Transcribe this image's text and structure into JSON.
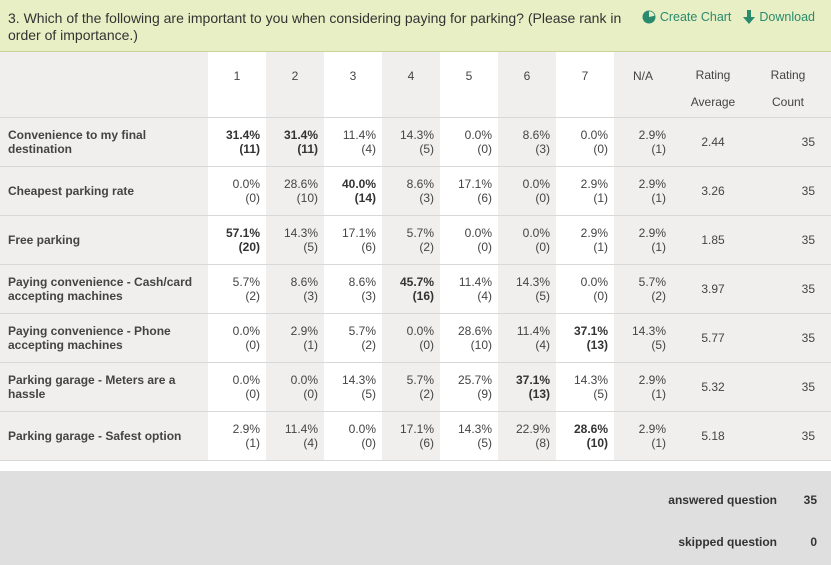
{
  "question": "3. Which of the following are important to you when considering paying for parking? (Please rank in order of importance.)",
  "actions": {
    "create_chart": "Create Chart",
    "download": "Download"
  },
  "colors": {
    "header_bg": "#e8efc4",
    "accent": "#2a8a6e",
    "footer_bg": "#dfdfdf"
  },
  "columns": [
    "1",
    "2",
    "3",
    "4",
    "5",
    "6",
    "7",
    "N/A",
    "Rating Average",
    "Rating Count"
  ],
  "rows": [
    {
      "label": "Convenience to my final destination",
      "cells": [
        [
          "31.4%",
          "(11)",
          true
        ],
        [
          "31.4%",
          "(11)",
          true
        ],
        [
          "11.4%",
          "(4)",
          false
        ],
        [
          "14.3%",
          "(5)",
          false
        ],
        [
          "0.0%",
          "(0)",
          false
        ],
        [
          "8.6%",
          "(3)",
          false
        ],
        [
          "0.0%",
          "(0)",
          false
        ],
        [
          "2.9%",
          "(1)",
          false
        ]
      ],
      "avg": "2.44",
      "count": "35"
    },
    {
      "label": "Cheapest parking rate",
      "cells": [
        [
          "0.0%",
          "(0)",
          false
        ],
        [
          "28.6%",
          "(10)",
          false
        ],
        [
          "40.0%",
          "(14)",
          true
        ],
        [
          "8.6%",
          "(3)",
          false
        ],
        [
          "17.1%",
          "(6)",
          false
        ],
        [
          "0.0%",
          "(0)",
          false
        ],
        [
          "2.9%",
          "(1)",
          false
        ],
        [
          "2.9%",
          "(1)",
          false
        ]
      ],
      "avg": "3.26",
      "count": "35"
    },
    {
      "label": "Free parking",
      "cells": [
        [
          "57.1%",
          "(20)",
          true
        ],
        [
          "14.3%",
          "(5)",
          false
        ],
        [
          "17.1%",
          "(6)",
          false
        ],
        [
          "5.7%",
          "(2)",
          false
        ],
        [
          "0.0%",
          "(0)",
          false
        ],
        [
          "0.0%",
          "(0)",
          false
        ],
        [
          "2.9%",
          "(1)",
          false
        ],
        [
          "2.9%",
          "(1)",
          false
        ]
      ],
      "avg": "1.85",
      "count": "35"
    },
    {
      "label": "Paying convenience - Cash/card accepting machines",
      "cells": [
        [
          "5.7%",
          "(2)",
          false
        ],
        [
          "8.6%",
          "(3)",
          false
        ],
        [
          "8.6%",
          "(3)",
          false
        ],
        [
          "45.7%",
          "(16)",
          true
        ],
        [
          "11.4%",
          "(4)",
          false
        ],
        [
          "14.3%",
          "(5)",
          false
        ],
        [
          "0.0%",
          "(0)",
          false
        ],
        [
          "5.7%",
          "(2)",
          false
        ]
      ],
      "avg": "3.97",
      "count": "35"
    },
    {
      "label": "Paying convenience - Phone accepting machines",
      "cells": [
        [
          "0.0%",
          "(0)",
          false
        ],
        [
          "2.9%",
          "(1)",
          false
        ],
        [
          "5.7%",
          "(2)",
          false
        ],
        [
          "0.0%",
          "(0)",
          false
        ],
        [
          "28.6%",
          "(10)",
          false
        ],
        [
          "11.4%",
          "(4)",
          false
        ],
        [
          "37.1%",
          "(13)",
          true
        ],
        [
          "14.3%",
          "(5)",
          false
        ]
      ],
      "avg": "5.77",
      "count": "35"
    },
    {
      "label": "Parking garage - Meters are a hassle",
      "cells": [
        [
          "0.0%",
          "(0)",
          false
        ],
        [
          "0.0%",
          "(0)",
          false
        ],
        [
          "14.3%",
          "(5)",
          false
        ],
        [
          "5.7%",
          "(2)",
          false
        ],
        [
          "25.7%",
          "(9)",
          false
        ],
        [
          "37.1%",
          "(13)",
          true
        ],
        [
          "14.3%",
          "(5)",
          false
        ],
        [
          "2.9%",
          "(1)",
          false
        ]
      ],
      "avg": "5.32",
      "count": "35"
    },
    {
      "label": "Parking garage - Safest option",
      "cells": [
        [
          "2.9%",
          "(1)",
          false
        ],
        [
          "11.4%",
          "(4)",
          false
        ],
        [
          "0.0%",
          "(0)",
          false
        ],
        [
          "17.1%",
          "(6)",
          false
        ],
        [
          "14.3%",
          "(5)",
          false
        ],
        [
          "22.9%",
          "(8)",
          false
        ],
        [
          "28.6%",
          "(10)",
          true
        ],
        [
          "2.9%",
          "(1)",
          false
        ]
      ],
      "avg": "5.18",
      "count": "35"
    }
  ],
  "footer": {
    "answered_label": "answered question",
    "answered_value": "35",
    "skipped_label": "skipped question",
    "skipped_value": "0"
  }
}
